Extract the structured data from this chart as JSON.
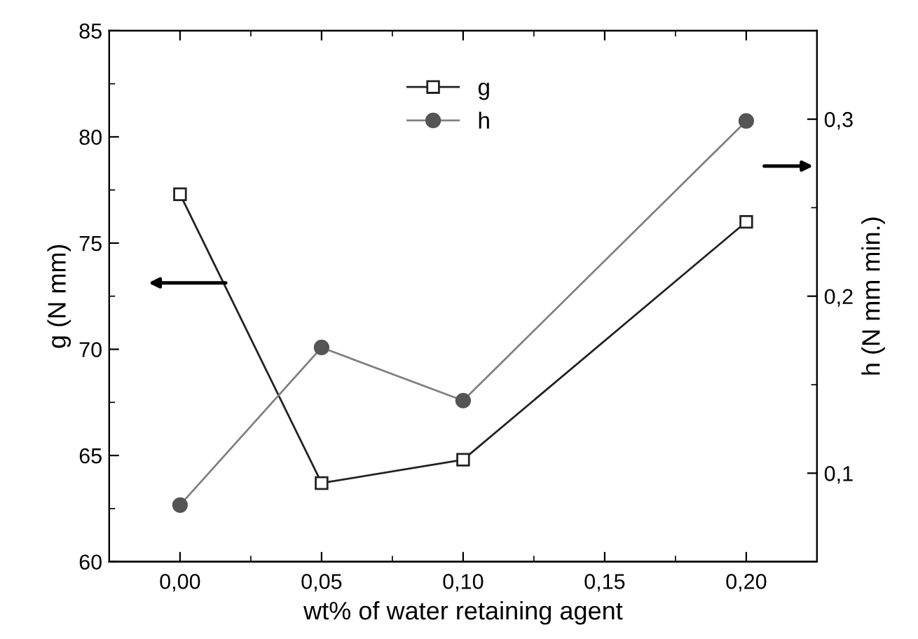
{
  "chart_data": {
    "type": "line",
    "xlabel": "wt% of water retaining agent",
    "ylabel": "g (N mm)",
    "y2label": "h (N mm min.)",
    "x": [
      0,
      0.05,
      0.1,
      0.2
    ],
    "series": [
      {
        "name": "g",
        "color": "#222222",
        "marker": "square",
        "values": [
          77.3,
          63.7,
          64.8,
          76.0
        ]
      },
      {
        "name": "h",
        "color": "#808080",
        "marker": "circle",
        "axis": "y2",
        "values": [
          0.082,
          0.171,
          0.141,
          0.299
        ]
      }
    ],
    "xlim": [
      -0.025,
      0.225
    ],
    "xticks": [
      {
        "value": 0,
        "label": "0,00"
      },
      {
        "value": 0.05,
        "label": "0,05"
      },
      {
        "value": 0.1,
        "label": "0,10"
      },
      {
        "value": 0.15,
        "label": "0,15"
      },
      {
        "value": 0.2,
        "label": "0,20"
      }
    ],
    "ylim": [
      60,
      85
    ],
    "yticks": [
      60,
      65,
      70,
      75,
      80,
      85
    ],
    "y2lim": [
      0.05,
      0.35
    ],
    "y2ticks": [
      {
        "value": 0.1,
        "label": "0,1"
      },
      {
        "value": 0.2,
        "label": "0,2"
      },
      {
        "value": 0.3,
        "label": "0,3"
      }
    ],
    "legend": "top",
    "grid": false,
    "line_style": "solid"
  }
}
